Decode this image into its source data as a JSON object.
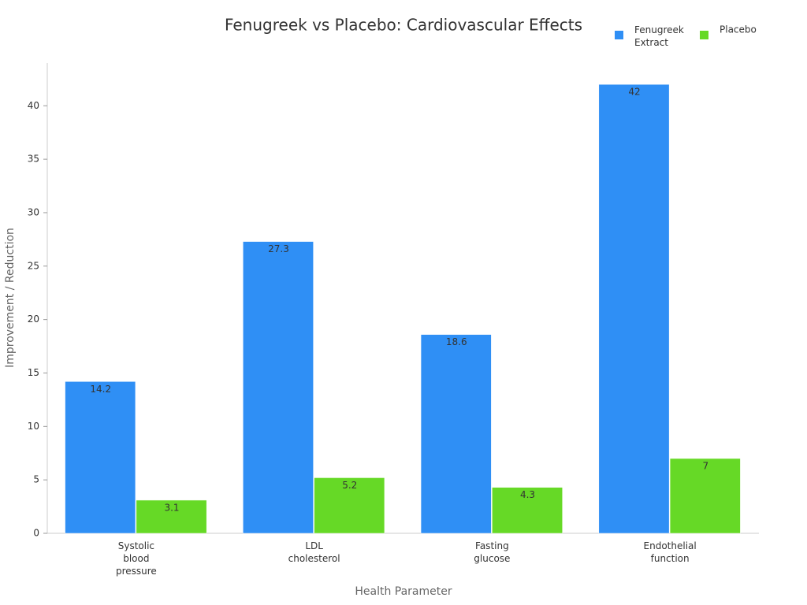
{
  "chart_data": {
    "type": "bar",
    "title": "Fenugreek vs Placebo: Cardiovascular Effects",
    "x_label": "Health Parameter",
    "y_label": "Improvement / Reduction",
    "categories": [
      "Systolic blood pressure",
      "LDL cholesterol",
      "Fasting glucose",
      "Endothelial function"
    ],
    "series": [
      {
        "name": "Fenugreek Extract",
        "color": "#2f8ff5",
        "values": [
          14.2,
          27.3,
          18.6,
          42
        ]
      },
      {
        "name": "Placebo",
        "color": "#66d926",
        "values": [
          3.1,
          5.2,
          4.3,
          7
        ]
      }
    ],
    "ylim": [
      0,
      44
    ],
    "yticks": [
      0,
      5,
      10,
      15,
      20,
      25,
      30,
      35,
      40
    ],
    "grid": false,
    "legend": "top-right"
  }
}
